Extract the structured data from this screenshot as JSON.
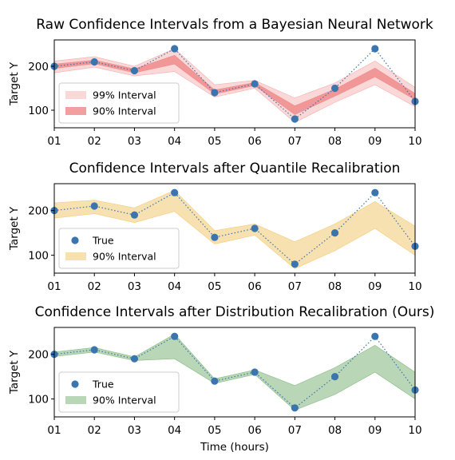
{
  "chart_data": [
    {
      "type": "line",
      "title": "Raw Confidence Intervals from a Bayesian Neural Network",
      "ylabel": "Target Y",
      "xlabel": "",
      "categories": [
        "01",
        "02",
        "03",
        "04",
        "05",
        "06",
        "07",
        "08",
        "09",
        "10"
      ],
      "ylim": [
        60,
        260
      ],
      "yticks": [
        100,
        200
      ],
      "bands": [
        {
          "name": "99% Interval",
          "color": "#f4a9a8",
          "opacity": 0.45,
          "lower": [
            185,
            198,
            178,
            188,
            130,
            150,
            72,
            118,
            158,
            108
          ],
          "upper": [
            212,
            222,
            200,
            240,
            158,
            168,
            128,
            162,
            212,
            152
          ]
        },
        {
          "name": "90% Interval",
          "color": "#ef8787",
          "opacity": 0.8,
          "lower": [
            195,
            206,
            185,
            205,
            137,
            156,
            90,
            132,
            176,
            124
          ],
          "upper": [
            205,
            214,
            194,
            225,
            146,
            163,
            110,
            148,
            196,
            138
          ]
        }
      ],
      "true_values": [
        200,
        210,
        190,
        240,
        140,
        160,
        80,
        150,
        240,
        120
      ],
      "show_true_legend": false,
      "legend": {
        "position": "lower-left"
      }
    },
    {
      "type": "line",
      "title": "Confidence Intervals after Quantile Recalibration",
      "ylabel": "Target Y",
      "xlabel": "",
      "categories": [
        "01",
        "02",
        "03",
        "04",
        "05",
        "06",
        "07",
        "08",
        "09",
        "10"
      ],
      "ylim": [
        60,
        260
      ],
      "yticks": [
        100,
        200
      ],
      "bands": [
        {
          "name": "90% Interval",
          "color": "#f2c970",
          "opacity": 0.55,
          "lower": [
            183,
            193,
            173,
            198,
            125,
            145,
            70,
            110,
            160,
            100
          ],
          "upper": [
            217,
            223,
            206,
            245,
            155,
            170,
            130,
            170,
            220,
            165
          ]
        }
      ],
      "true_values": [
        200,
        210,
        190,
        240,
        140,
        160,
        80,
        150,
        240,
        120
      ],
      "true_label": "True",
      "show_true_legend": true,
      "legend": {
        "position": "lower-left"
      }
    },
    {
      "type": "line",
      "title": "Confidence Intervals after Distribution Recalibration (Ours)",
      "ylabel": "Target Y",
      "xlabel": "Time (hours)",
      "categories": [
        "01",
        "02",
        "03",
        "04",
        "05",
        "06",
        "07",
        "08",
        "09",
        "10"
      ],
      "ylim": [
        60,
        260
      ],
      "yticks": [
        100,
        200
      ],
      "bands": [
        {
          "name": "90% Interval",
          "color": "#7fb77a",
          "opacity": 0.55,
          "lower": [
            195,
            205,
            186,
            190,
            135,
            155,
            75,
            110,
            160,
            100
          ],
          "upper": [
            205,
            215,
            194,
            245,
            145,
            165,
            130,
            170,
            220,
            160
          ]
        }
      ],
      "true_values": [
        200,
        210,
        190,
        240,
        140,
        160,
        80,
        150,
        240,
        120
      ],
      "true_label": "True",
      "show_true_legend": true,
      "legend": {
        "position": "lower-left"
      }
    }
  ],
  "colors": {
    "true_marker": "#3b75af",
    "true_line": "#3b75af"
  }
}
